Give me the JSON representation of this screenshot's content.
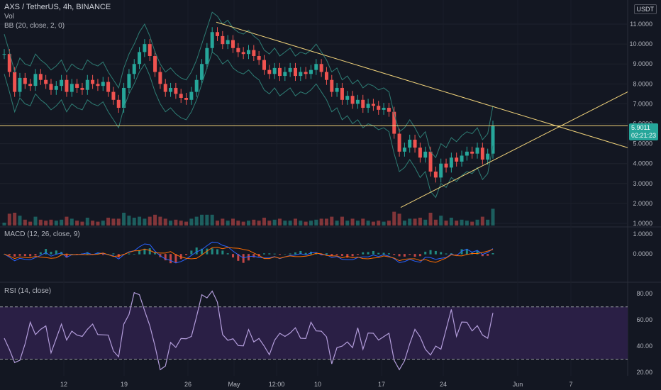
{
  "header": {
    "symbol_line": "AXS / TetherUS, 4h, BINANCE",
    "vol_label": "Vol",
    "bb_label": "BB (20, close, 2, 0)"
  },
  "currency_badge": "USDT",
  "price_badge": {
    "price": "5.9011",
    "countdown": "02:21:23"
  },
  "macd_label": "MACD (12, 26, close, 9)",
  "rsi_label": "RSI (14, close)",
  "colors": {
    "up": "#26a69a",
    "down": "#ef5350",
    "bb": "#2e7d74",
    "trend": "#f0d27a",
    "rsi": "#b39ddb",
    "rsi_band": "#2a1f45",
    "macd": "#2962ff",
    "signal": "#ff6d00",
    "price_badge": "#26a69a"
  },
  "chart_data": [
    {
      "type": "line",
      "title": "AXS / TetherUS, 4h, BINANCE",
      "description_series": "candlestick approximation of close",
      "x_ticks": [
        "12",
        "19",
        "26",
        "May",
        "12:00",
        "10",
        "17",
        "24",
        "Jun",
        "7"
      ],
      "y_ticks": [
        "11.0000",
        "10.0000",
        "9.0000",
        "8.0000",
        "7.0000",
        "6.0000",
        "5.0000",
        "4.0000",
        "3.0000",
        "2.0000",
        "1.0000"
      ],
      "ylim": [
        1,
        11.5
      ],
      "series": [
        {
          "values": [
            9.5,
            8.6,
            7.6,
            8.3,
            8.0,
            7.9,
            8.5,
            8.2,
            8.0,
            7.7,
            7.9,
            8.2,
            7.6,
            8.0,
            7.8,
            7.7,
            8.2,
            8.0,
            7.9,
            8.1,
            7.6,
            7.2,
            6.8,
            7.8,
            8.5,
            9.0,
            9.6,
            10.0,
            9.4,
            8.6,
            8.0,
            7.6,
            7.8,
            7.5,
            7.3,
            7.2,
            7.6,
            8.2,
            9.0,
            9.8,
            10.6,
            10.4,
            10.0,
            10.2,
            9.8,
            9.6,
            9.5,
            9.7,
            9.4,
            9.2,
            8.7,
            8.5,
            8.8,
            8.4,
            8.6,
            8.8,
            8.4,
            8.6,
            8.5,
            8.7,
            9.0,
            8.6,
            8.2,
            7.6,
            7.8,
            7.2,
            7.4,
            7.0,
            7.2,
            6.8,
            7.0,
            6.9,
            6.7,
            6.8,
            6.6,
            5.5,
            4.6,
            4.8,
            5.2,
            4.8,
            4.3,
            4.6,
            3.6,
            3.3,
            4.0,
            3.8,
            4.3,
            4.1,
            4.4,
            4.6,
            4.5,
            4.8,
            4.2,
            4.5,
            5.9
          ]
        }
      ]
    },
    {
      "type": "line",
      "title": "MACD (12, 26, close, 9)",
      "y_ticks": [
        "1.0000",
        "0.0000"
      ],
      "ylim": [
        -1.2,
        1.0
      ]
    },
    {
      "type": "line",
      "title": "RSI (14, close)",
      "y_ticks": [
        "80.00",
        "60.00",
        "40.00",
        "20.00"
      ],
      "ylim": [
        20,
        85
      ],
      "bands": [
        30,
        70
      ]
    }
  ]
}
